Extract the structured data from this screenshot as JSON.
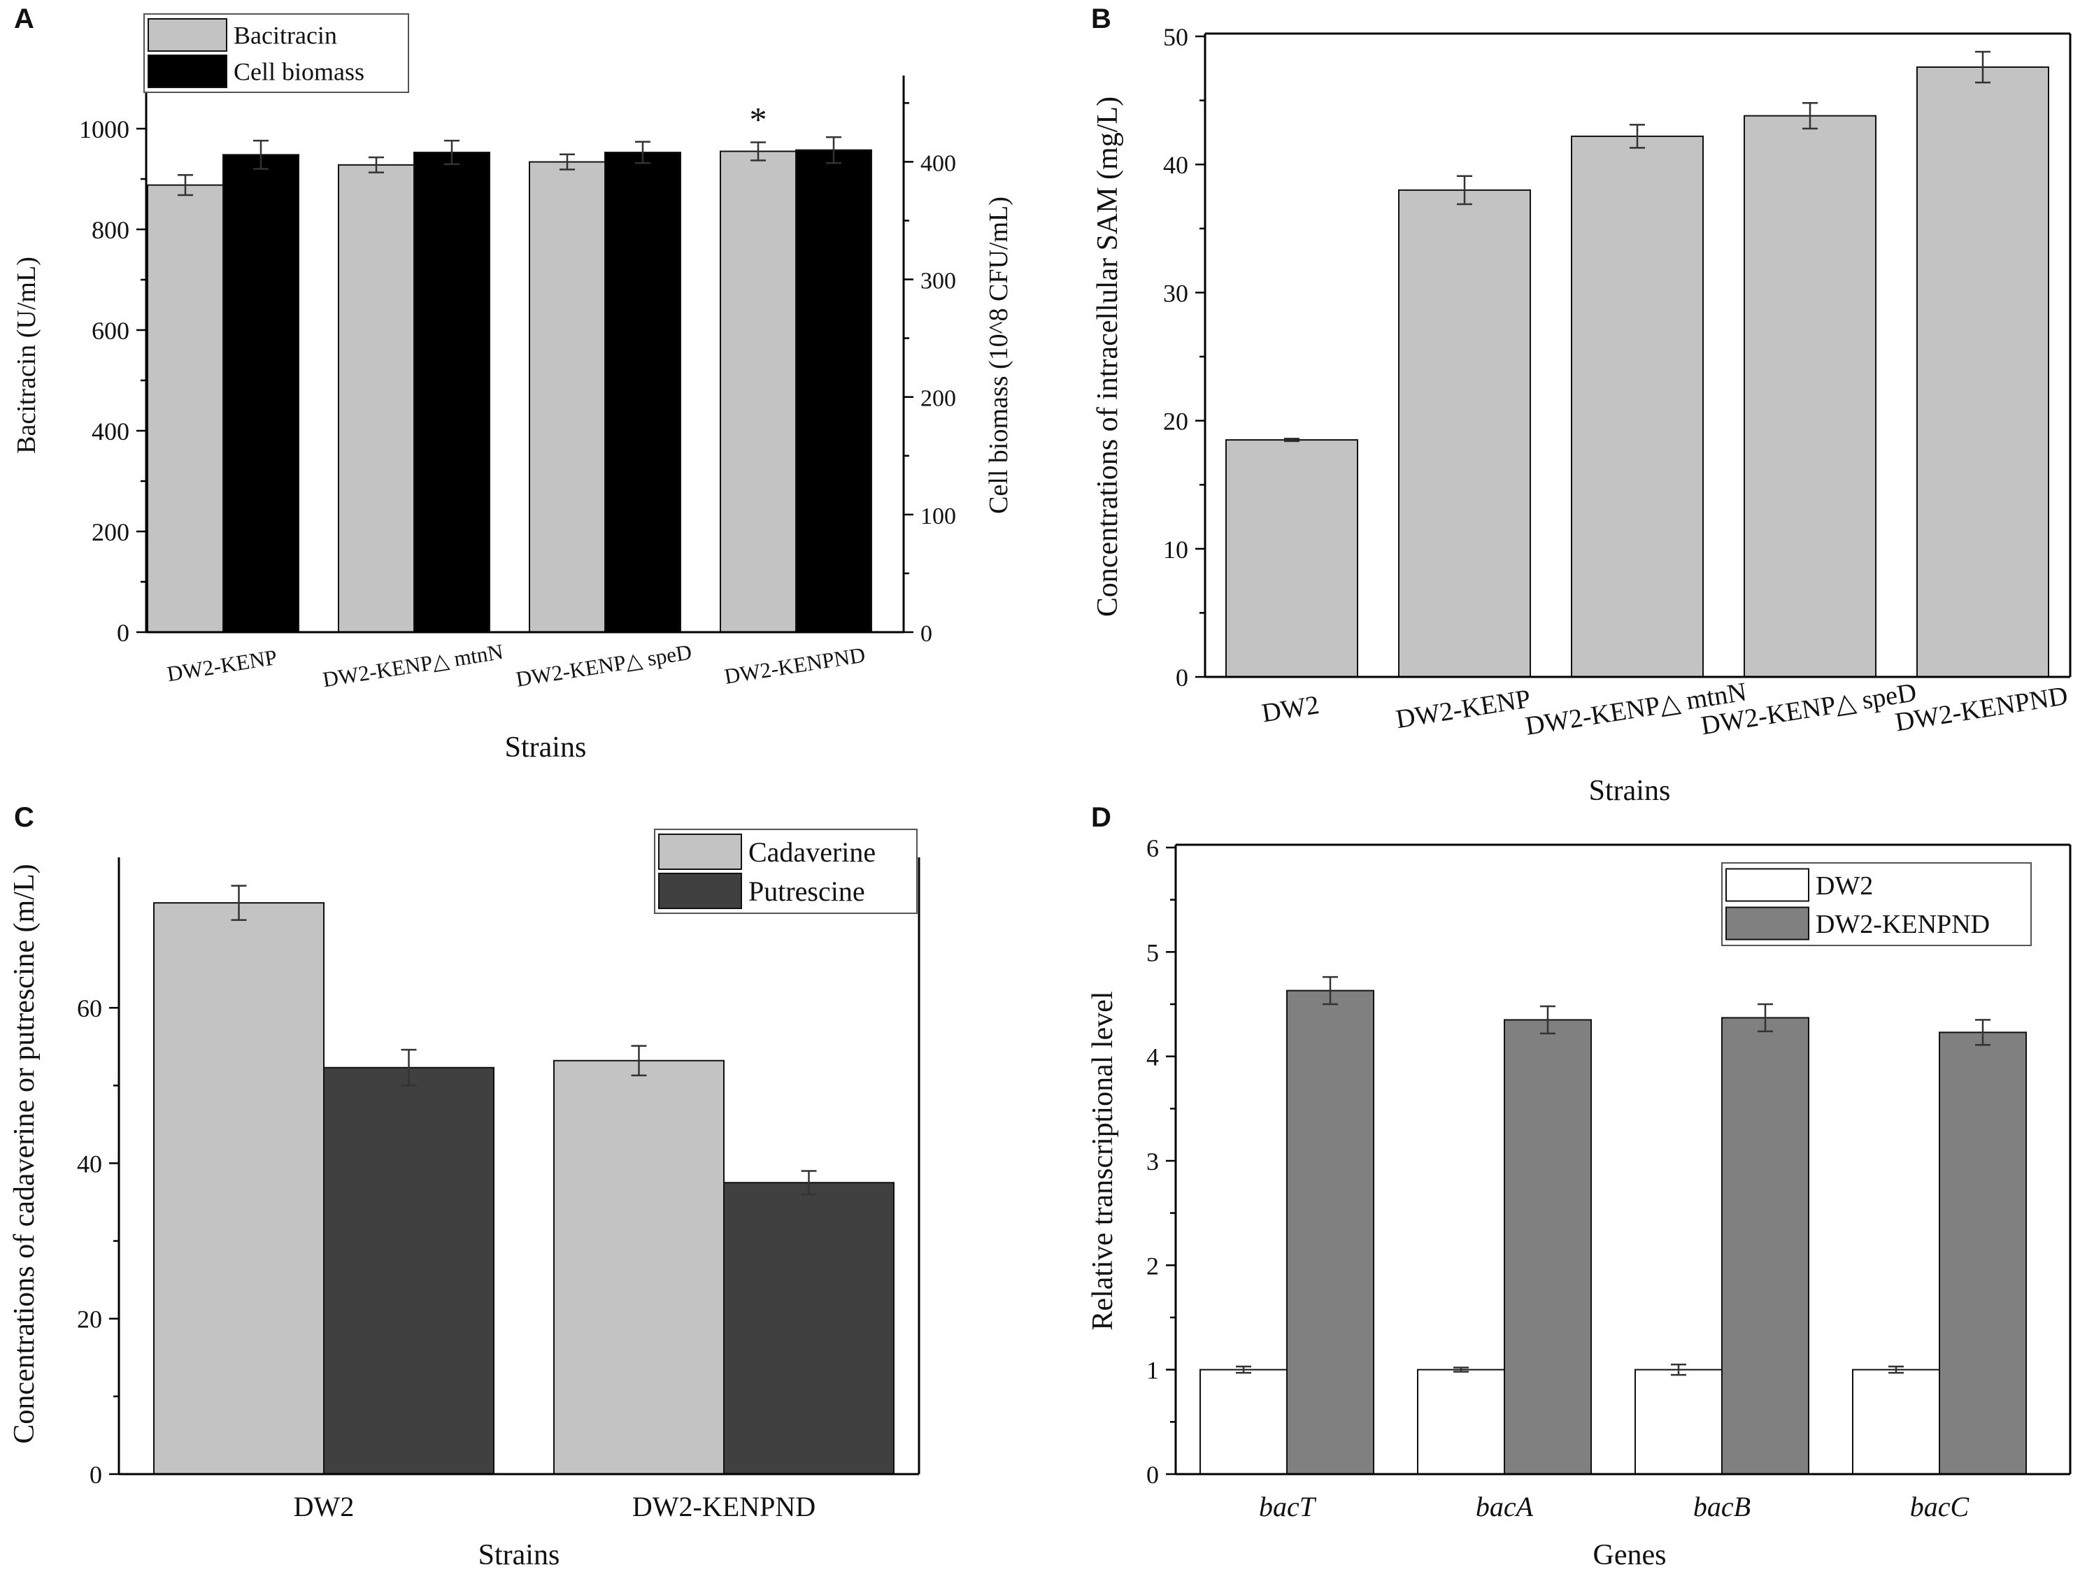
{
  "chart_data": [
    {
      "panel": "A",
      "type": "bar",
      "xlabel": "Strains",
      "ylabel": "Bacitracin (U/mL)",
      "y2label": "Cell biomass (10^8 CFU/mL)",
      "categories": [
        "DW2-KENP",
        "DW2-KENP△ mtnN",
        "DW2-KENP△ speD",
        "DW2-KENPND"
      ],
      "series": [
        {
          "name": "Bacitracin",
          "axis": "left",
          "color": "#c3c3c3",
          "values": [
            888,
            928,
            934,
            955
          ],
          "errors": [
            20,
            15,
            15,
            18
          ]
        },
        {
          "name": "Cell biomass",
          "axis": "right",
          "color": "#000000",
          "values": [
            406,
            408,
            408,
            410
          ],
          "errors": [
            12,
            10,
            9,
            11
          ]
        }
      ],
      "ylim": [
        0,
        1100
      ],
      "yticks": [
        0,
        200,
        400,
        600,
        800,
        1000
      ],
      "y2lim": [
        0,
        471
      ],
      "y2ticks": [
        0,
        100,
        200,
        300,
        400
      ],
      "annotations": [
        {
          "category": "DW2-KENPND",
          "text": "*"
        }
      ],
      "legend": "top-left"
    },
    {
      "panel": "B",
      "type": "bar",
      "xlabel": "Strains",
      "ylabel": "Concentrations of intracellular SAM (mg/L)",
      "categories": [
        "DW2",
        "DW2-KENP",
        "DW2-KENP△ mtnN",
        "DW2-KENP△ speD",
        "DW2-KENPND"
      ],
      "series": [
        {
          "name": "SAM",
          "color": "#c3c3c3",
          "values": [
            18.5,
            38.0,
            42.2,
            43.8,
            47.6
          ],
          "errors": [
            0.1,
            1.1,
            0.9,
            1.0,
            1.2
          ]
        }
      ],
      "ylim": [
        0,
        50
      ],
      "yticks": [
        0,
        10,
        20,
        30,
        40,
        50
      ]
    },
    {
      "panel": "C",
      "type": "bar",
      "xlabel": "Strains",
      "ylabel": "Concentrations of cadaverine or putrescine (m/L)",
      "categories": [
        "DW2",
        "DW2-KENPND"
      ],
      "series": [
        {
          "name": "Cadaverine",
          "color": "#c3c3c3",
          "values": [
            73.5,
            53.2
          ],
          "errors": [
            2.2,
            1.9
          ]
        },
        {
          "name": "Putrescine",
          "color": "#404040",
          "values": [
            52.3,
            37.5
          ],
          "errors": [
            2.3,
            1.5
          ]
        }
      ],
      "ylim": [
        0,
        79
      ],
      "yticks": [
        0,
        20,
        40,
        60
      ],
      "legend": "top-right"
    },
    {
      "panel": "D",
      "type": "bar",
      "xlabel": "Genes",
      "ylabel": "Relative transcriptional level",
      "categories": [
        "bacT",
        "bacA",
        "bacB",
        "bacC"
      ],
      "series": [
        {
          "name": "DW2",
          "color": "#ffffff",
          "values": [
            1.0,
            1.0,
            1.0,
            1.0
          ],
          "errors": [
            0.03,
            0.02,
            0.05,
            0.03
          ]
        },
        {
          "name": "DW2-KENPND",
          "color": "#808080",
          "values": [
            4.63,
            4.35,
            4.37,
            4.23
          ],
          "errors": [
            0.13,
            0.13,
            0.13,
            0.12
          ]
        }
      ],
      "ylim": [
        0,
        6
      ],
      "yticks": [
        0,
        1,
        2,
        3,
        4,
        5,
        6
      ],
      "legend": "top-right"
    }
  ]
}
